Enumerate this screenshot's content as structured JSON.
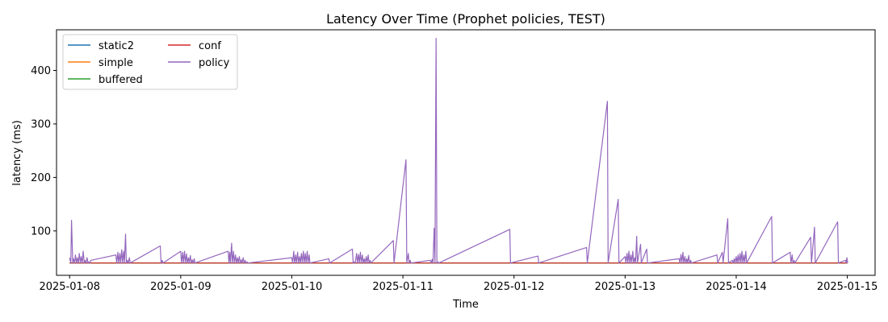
{
  "chart_data": {
    "type": "line",
    "title": "Latency Over Time (Prophet policies, TEST)",
    "xlabel": "Time",
    "ylabel": "latency (ms)",
    "x_range": [
      "2025-01-07T21:10",
      "2025-01-15T06:00"
    ],
    "ylim": [
      17,
      476
    ],
    "x_ticks": [
      "2025-01-08",
      "2025-01-09",
      "2025-01-10",
      "2025-01-11",
      "2025-01-12",
      "2025-01-13",
      "2025-01-14",
      "2025-01-15"
    ],
    "y_ticks": [
      100,
      200,
      300,
      400
    ],
    "grid": false,
    "legend_position": "upper-left",
    "baseline_ms": 40,
    "series": [
      {
        "name": "static2",
        "color": "#1f77b4",
        "x": [
          "2025-01-08T00:00",
          "2025-01-15T00:00"
        ],
        "y": [
          40,
          40
        ]
      },
      {
        "name": "simple",
        "color": "#ff7f0e",
        "x": [
          "2025-01-08T00:00",
          "2025-01-15T00:00"
        ],
        "y": [
          40,
          40
        ]
      },
      {
        "name": "buffered",
        "color": "#2ca02c",
        "x": [
          "2025-01-08T00:00",
          "2025-01-15T00:00"
        ],
        "y": [
          40,
          40
        ]
      },
      {
        "name": "conf",
        "color": "#d62728",
        "x": [
          "2025-01-08T00:00",
          "2025-01-15T00:00"
        ],
        "y": [
          40,
          40
        ]
      },
      {
        "name": "policy",
        "color": "#9467bd",
        "x": [
          "2025-01-08T00:00",
          "2025-01-08T00:15",
          "2025-01-08T00:25",
          "2025-01-08T00:40",
          "2025-01-08T00:50",
          "2025-01-08T01:05",
          "2025-01-08T01:15",
          "2025-01-08T01:30",
          "2025-01-08T01:40",
          "2025-01-08T01:55",
          "2025-01-08T02:05",
          "2025-01-08T02:20",
          "2025-01-08T02:30",
          "2025-01-08T02:45",
          "2025-01-08T02:55",
          "2025-01-08T03:10",
          "2025-01-08T03:20",
          "2025-01-08T03:35",
          "2025-01-08T03:45",
          "2025-01-08T04:00",
          "2025-01-08T04:10",
          "2025-01-08T04:25",
          "2025-01-08T04:35",
          "2025-01-08T10:00",
          "2025-01-08T10:10",
          "2025-01-08T10:25",
          "2025-01-08T10:35",
          "2025-01-08T10:50",
          "2025-01-08T11:00",
          "2025-01-08T11:15",
          "2025-01-08T11:25",
          "2025-01-08T11:40",
          "2025-01-08T11:50",
          "2025-01-08T12:05",
          "2025-01-08T12:15",
          "2025-01-08T12:30",
          "2025-01-08T12:40",
          "2025-01-08T12:55",
          "2025-01-08T13:05",
          "2025-01-08T19:35",
          "2025-01-08T19:45",
          "2025-01-08T20:00",
          "2025-01-08T20:10",
          "2025-01-09T00:00",
          "2025-01-09T00:10",
          "2025-01-09T00:25",
          "2025-01-09T00:35",
          "2025-01-09T00:50",
          "2025-01-09T01:00",
          "2025-01-09T01:15",
          "2025-01-09T01:25",
          "2025-01-09T01:40",
          "2025-01-09T01:50",
          "2025-01-09T02:05",
          "2025-01-09T02:15",
          "2025-01-09T02:30",
          "2025-01-09T02:40",
          "2025-01-09T02:55",
          "2025-01-09T03:05",
          "2025-01-09T10:15",
          "2025-01-09T10:25",
          "2025-01-09T10:35",
          "2025-01-09T10:45",
          "2025-01-09T11:00",
          "2025-01-09T11:10",
          "2025-01-09T11:25",
          "2025-01-09T11:35",
          "2025-01-09T11:50",
          "2025-01-09T12:00",
          "2025-01-09T12:15",
          "2025-01-09T12:25",
          "2025-01-09T12:40",
          "2025-01-09T12:50",
          "2025-01-09T13:05",
          "2025-01-09T13:15",
          "2025-01-09T13:30",
          "2025-01-09T13:40",
          "2025-01-09T13:55",
          "2025-01-09T14:05",
          "2025-01-09T14:20",
          "2025-01-09T14:30",
          "2025-01-10T00:00",
          "2025-01-10T00:10",
          "2025-01-10T00:25",
          "2025-01-10T00:35",
          "2025-01-10T00:50",
          "2025-01-10T01:00",
          "2025-01-10T01:15",
          "2025-01-10T01:25",
          "2025-01-10T01:40",
          "2025-01-10T01:50",
          "2025-01-10T02:05",
          "2025-01-10T02:15",
          "2025-01-10T02:30",
          "2025-01-10T02:40",
          "2025-01-10T02:55",
          "2025-01-10T03:05",
          "2025-01-10T03:20",
          "2025-01-10T03:30",
          "2025-01-10T03:45",
          "2025-01-10T03:55",
          "2025-01-10T08:00",
          "2025-01-10T08:10",
          "2025-01-10T13:05",
          "2025-01-10T13:15",
          "2025-01-10T13:30",
          "2025-01-10T13:40",
          "2025-01-10T14:00",
          "2025-01-10T14:10",
          "2025-01-10T14:25",
          "2025-01-10T14:35",
          "2025-01-10T14:50",
          "2025-01-10T15:00",
          "2025-01-10T15:15",
          "2025-01-10T15:25",
          "2025-01-10T15:40",
          "2025-01-10T15:50",
          "2025-01-10T16:05",
          "2025-01-10T16:15",
          "2025-01-10T16:30",
          "2025-01-10T16:40",
          "2025-01-10T16:55",
          "2025-01-10T17:05",
          "2025-01-10T21:55",
          "2025-01-10T22:05",
          "2025-01-11T00:40",
          "2025-01-11T00:50",
          "2025-01-11T01:10",
          "2025-01-11T01:20",
          "2025-01-11T01:35",
          "2025-01-11T01:45",
          "2025-01-11T05:55",
          "2025-01-11T06:05",
          "2025-01-11T06:20",
          "2025-01-11T06:30",
          "2025-01-11T06:45",
          "2025-01-11T06:55",
          "2025-01-11T07:10",
          "2025-01-11T07:20",
          "2025-01-11T07:35",
          "2025-01-11T07:45",
          "2025-01-11T23:05",
          "2025-01-11T23:15",
          "2025-01-12T05:10",
          "2025-01-12T05:20",
          "2025-01-12T15:40",
          "2025-01-12T15:50",
          "2025-01-12T20:10",
          "2025-01-12T20:20",
          "2025-01-12T22:30",
          "2025-01-12T22:40",
          "2025-01-13T00:00",
          "2025-01-13T00:10",
          "2025-01-13T00:25",
          "2025-01-13T00:35",
          "2025-01-13T00:50",
          "2025-01-13T01:00",
          "2025-01-13T01:15",
          "2025-01-13T01:25",
          "2025-01-13T01:40",
          "2025-01-13T01:50",
          "2025-01-13T02:05",
          "2025-01-13T02:15",
          "2025-01-13T02:30",
          "2025-01-13T02:40",
          "2025-01-13T03:20",
          "2025-01-13T03:30",
          "2025-01-13T04:40",
          "2025-01-13T04:50",
          "2025-01-13T11:40",
          "2025-01-13T11:50",
          "2025-01-13T12:05",
          "2025-01-13T12:15",
          "2025-01-13T12:30",
          "2025-01-13T12:40",
          "2025-01-13T12:55",
          "2025-01-13T13:05",
          "2025-01-13T13:20",
          "2025-01-13T13:30",
          "2025-01-13T13:45",
          "2025-01-13T13:55",
          "2025-01-13T14:10",
          "2025-01-13T14:20",
          "2025-01-13T19:50",
          "2025-01-13T20:00",
          "2025-01-13T21:00",
          "2025-01-13T21:10",
          "2025-01-13T22:10",
          "2025-01-13T22:20",
          "2025-01-13T23:10",
          "2025-01-13T23:20",
          "2025-01-13T23:35",
          "2025-01-13T23:45",
          "2025-01-14T00:00",
          "2025-01-14T00:10",
          "2025-01-14T00:25",
          "2025-01-14T00:35",
          "2025-01-14T00:50",
          "2025-01-14T01:00",
          "2025-01-14T01:15",
          "2025-01-14T01:25",
          "2025-01-14T01:40",
          "2025-01-14T01:50",
          "2025-01-14T02:05",
          "2025-01-14T02:15",
          "2025-01-14T07:40",
          "2025-01-14T07:50",
          "2025-01-14T11:40",
          "2025-01-14T11:50",
          "2025-01-14T12:05",
          "2025-01-14T12:15",
          "2025-01-14T12:30",
          "2025-01-14T12:40",
          "2025-01-14T16:05",
          "2025-01-14T16:15",
          "2025-01-14T16:55",
          "2025-01-14T17:05",
          "2025-01-14T21:55",
          "2025-01-14T22:05",
          "2025-01-14T23:35",
          "2025-01-14T23:45",
          "2025-01-14T23:55",
          "2025-01-15T00:05"
        ],
        "y": [
          50,
          40,
          120,
          40,
          48,
          40,
          55,
          40,
          50,
          40,
          58,
          40,
          52,
          40,
          62,
          40,
          45,
          40,
          50,
          40,
          42,
          40,
          45,
          55,
          40,
          60,
          40,
          58,
          40,
          65,
          40,
          62,
          40,
          94,
          40,
          45,
          40,
          50,
          40,
          72,
          40,
          45,
          40,
          62,
          40,
          60,
          40,
          62,
          40,
          57,
          40,
          50,
          40,
          54,
          40,
          46,
          40,
          48,
          40,
          62,
          40,
          60,
          40,
          77,
          40,
          62,
          40,
          55,
          40,
          50,
          40,
          52,
          40,
          46,
          40,
          50,
          40,
          45,
          40,
          42,
          40,
          50,
          40,
          62,
          40,
          55,
          40,
          60,
          40,
          52,
          40,
          58,
          40,
          62,
          40,
          58,
          40,
          62,
          40,
          55,
          40,
          48,
          40,
          66,
          40,
          42,
          40,
          58,
          40,
          56,
          40,
          60,
          40,
          55,
          40,
          48,
          40,
          52,
          40,
          55,
          40,
          45,
          40,
          82,
          40,
          233,
          40,
          58,
          40,
          45,
          40,
          45,
          40,
          47,
          40,
          105,
          40,
          460,
          40,
          42,
          40,
          103,
          40,
          53,
          40,
          69,
          40,
          342,
          40,
          159,
          40,
          52,
          40,
          58,
          40,
          62,
          40,
          55,
          40,
          62,
          40,
          50,
          40,
          90,
          40,
          75,
          40,
          66,
          40,
          48,
          40,
          56,
          40,
          60,
          40,
          52,
          40,
          48,
          40,
          54,
          40,
          45,
          40,
          55,
          40,
          60,
          40,
          123,
          40,
          45,
          40,
          48,
          40,
          52,
          40,
          55,
          40,
          58,
          40,
          62,
          40,
          55,
          40,
          62,
          40,
          127,
          40,
          60,
          40,
          55,
          40,
          45,
          40,
          88,
          40,
          107,
          40,
          117,
          40,
          45,
          40,
          50,
          40
        ]
      }
    ]
  }
}
